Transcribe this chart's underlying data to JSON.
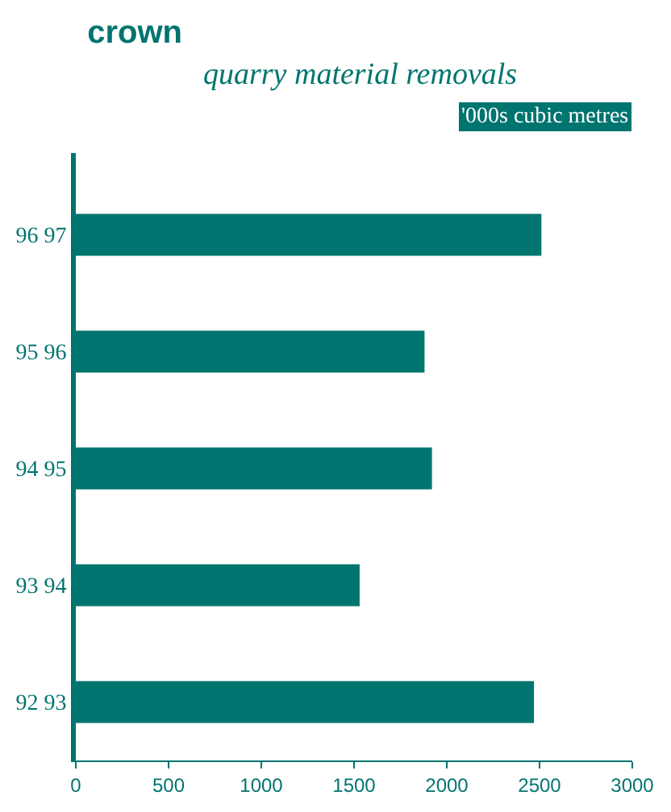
{
  "chart_data": {
    "type": "bar",
    "orientation": "horizontal",
    "title": "crown",
    "subtitle": "quarry material removals",
    "xlabel": "'000s cubic metres",
    "categories": [
      "96 97",
      "95 96",
      "94 95",
      "93 94",
      "92 93"
    ],
    "values": [
      2510,
      1880,
      1920,
      1530,
      2470
    ],
    "color": "#00746f",
    "xlim": [
      0,
      3000
    ],
    "xticks": [
      0,
      500,
      1000,
      1500,
      2000,
      2500,
      3000
    ]
  }
}
